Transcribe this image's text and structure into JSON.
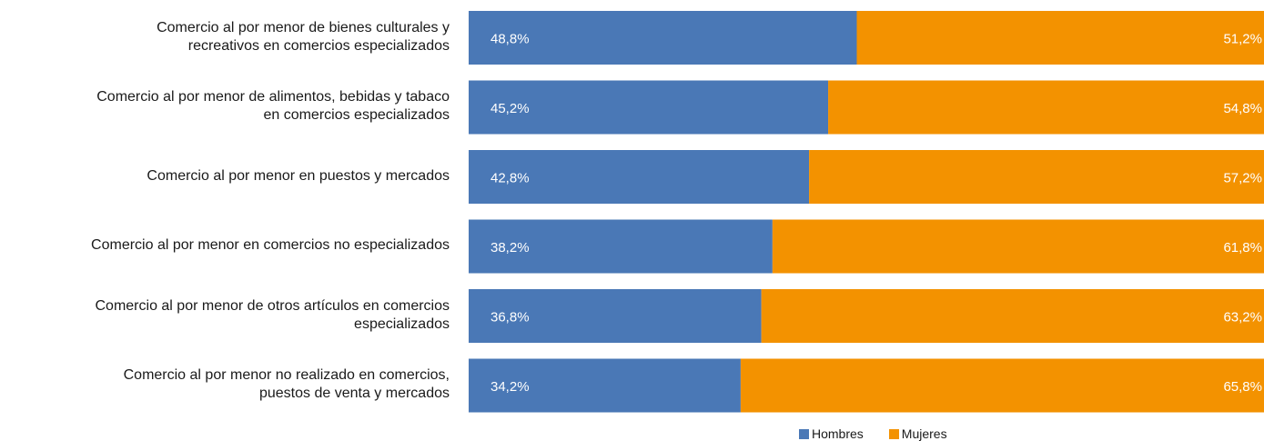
{
  "chart_data": {
    "type": "bar",
    "orientation": "horizontal-stacked-100",
    "categories": [
      [
        "Comercio al por menor de bienes culturales y",
        "recreativos en comercios especializados"
      ],
      [
        "Comercio al por menor de alimentos, bebidas y tabaco",
        "en comercios especializados"
      ],
      [
        "Comercio al por menor en puestos y mercados"
      ],
      [
        "Comercio al por menor en comercios no especializados"
      ],
      [
        "Comercio al por  menor de otros artículos en comercios",
        "especializados"
      ],
      [
        "Comercio al por menor no realizado en comercios,",
        "puestos de venta y mercados"
      ]
    ],
    "series": [
      {
        "name": "Hombres",
        "color": "#4a78b6",
        "values": [
          48.8,
          45.2,
          42.8,
          38.2,
          36.8,
          34.2
        ],
        "labels": [
          "48,8%",
          "45,2%",
          "42,8%",
          "38,2%",
          "36,8%",
          "34,2%"
        ]
      },
      {
        "name": "Mujeres",
        "color": "#f39200",
        "values": [
          51.2,
          54.8,
          57.2,
          61.8,
          63.2,
          65.8
        ],
        "labels": [
          "51,2%",
          "54,8%",
          "57,2%",
          "61,8%",
          "63,2%",
          "65,8%"
        ]
      }
    ],
    "xlim": [
      0,
      100
    ],
    "legend": "bottom",
    "grid": false
  }
}
